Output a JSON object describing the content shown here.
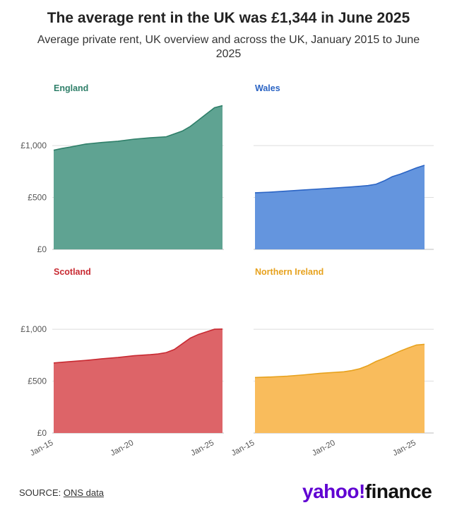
{
  "header": {
    "title": "The average rent in the UK was £1,344 in June 2025",
    "subtitle": "Average private rent, UK overview and across the UK, January 2015 to June 2025"
  },
  "chart_data": [
    {
      "type": "area",
      "title": "England",
      "color": "#2f7f69",
      "fill": "#5fa392",
      "x": [
        2015.0,
        2015.5,
        2016,
        2017,
        2018,
        2019,
        2020,
        2021,
        2022,
        2023,
        2023.5,
        2024,
        2024.5,
        2025,
        2025.5
      ],
      "values": [
        955,
        972,
        985,
        1015,
        1030,
        1042,
        1062,
        1075,
        1085,
        1140,
        1185,
        1245,
        1305,
        1365,
        1385
      ],
      "ylim": [
        0,
        1450
      ],
      "yticks": [
        "£0",
        "£500",
        "£1,000"
      ],
      "xticks": []
    },
    {
      "type": "area",
      "title": "Wales",
      "color": "#2b64c4",
      "fill": "#6495de",
      "x": [
        2015.0,
        2016,
        2017,
        2018,
        2019,
        2020,
        2021,
        2022,
        2022.5,
        2023,
        2023.5,
        2024,
        2024.5,
        2025,
        2025.5
      ],
      "values": [
        545,
        552,
        562,
        572,
        582,
        592,
        602,
        615,
        628,
        660,
        700,
        725,
        755,
        785,
        810
      ],
      "ylim": [
        0,
        1450
      ],
      "yticks": [],
      "xticks": []
    },
    {
      "type": "area",
      "title": "Scotland",
      "color": "#c82a32",
      "fill": "#dd6468",
      "x": [
        2015.0,
        2016,
        2017,
        2018,
        2019,
        2020,
        2021,
        2021.5,
        2022,
        2022.5,
        2023,
        2023.5,
        2024,
        2024.5,
        2025,
        2025.5
      ],
      "values": [
        675,
        688,
        700,
        715,
        728,
        745,
        755,
        762,
        775,
        805,
        860,
        915,
        950,
        975,
        1000,
        1002
      ],
      "ylim": [
        0,
        1450
      ],
      "yticks": [
        "£0",
        "£500",
        "£1,000"
      ],
      "xticks": [
        "Jan-15",
        "Jan-20",
        "Jan-25"
      ]
    },
    {
      "type": "area",
      "title": "Northern Ireland",
      "color": "#e7a21e",
      "fill": "#f9bc5c",
      "x": [
        2015.0,
        2016,
        2017,
        2018,
        2019,
        2020,
        2020.5,
        2021,
        2021.5,
        2022,
        2022.5,
        2023,
        2023.5,
        2024,
        2024.5,
        2025,
        2025.5
      ],
      "values": [
        535,
        540,
        548,
        560,
        575,
        585,
        590,
        602,
        620,
        650,
        690,
        720,
        755,
        790,
        820,
        848,
        855
      ],
      "ylim": [
        0,
        1450
      ],
      "yticks": [],
      "xticks": [
        "Jan-15",
        "Jan-20",
        "Jan-25"
      ]
    }
  ],
  "footer": {
    "source_prefix": "SOURCE: ",
    "source_link": "ONS data",
    "logo_part1": "yahoo!",
    "logo_part2": "finance"
  }
}
